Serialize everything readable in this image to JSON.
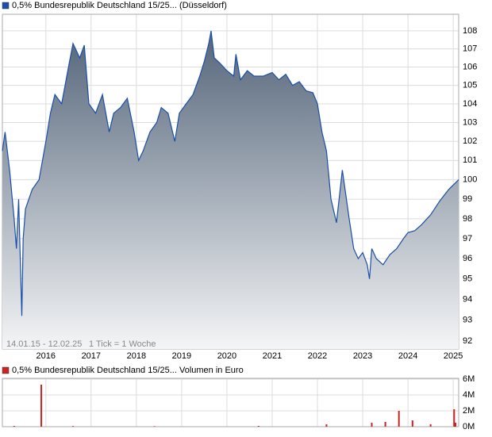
{
  "chart_data": [
    {
      "type": "area",
      "series": [
        {
          "name": "0,5% Bundesrepublik Deutschland 15/25... (Düsseldorf)",
          "color": "#1a4fa8",
          "x": [
            2015.04,
            2015.1,
            2015.2,
            2015.3,
            2015.35,
            2015.4,
            2015.47,
            2015.5,
            2015.55,
            2015.7,
            2015.85,
            2016.0,
            2016.1,
            2016.2,
            2016.35,
            2016.5,
            2016.6,
            2016.75,
            2016.85,
            2016.95,
            2017.1,
            2017.25,
            2017.4,
            2017.5,
            2017.65,
            2017.8,
            2017.95,
            2018.05,
            2018.15,
            2018.3,
            2018.45,
            2018.55,
            2018.7,
            2018.85,
            2018.95,
            2019.1,
            2019.25,
            2019.4,
            2019.5,
            2019.6,
            2019.65,
            2019.72,
            2019.85,
            2020.0,
            2020.15,
            2020.2,
            2020.3,
            2020.45,
            2020.6,
            2020.8,
            2021.0,
            2021.15,
            2021.3,
            2021.45,
            2021.6,
            2021.75,
            2021.9,
            2022.0,
            2022.1,
            2022.2,
            2022.3,
            2022.42,
            2022.55,
            2022.7,
            2022.8,
            2022.9,
            2023.0,
            2023.1,
            2023.15,
            2023.2,
            2023.3,
            2023.45,
            2023.6,
            2023.75,
            2023.9,
            2024.0,
            2024.15,
            2024.3,
            2024.5,
            2024.7,
            2024.9,
            2025.12
          ],
          "values": [
            101.5,
            102.5,
            100.5,
            98,
            96.5,
            99,
            93.2,
            97,
            98.5,
            99.5,
            100,
            102,
            103.5,
            104.5,
            104,
            106,
            107.3,
            106.5,
            107.2,
            104,
            103.5,
            104.5,
            102.5,
            103.5,
            103.8,
            104.3,
            102.5,
            101,
            101.5,
            102.5,
            103,
            103.8,
            103.5,
            102,
            103.5,
            104,
            104.5,
            105.5,
            106.3,
            107.3,
            108,
            106.5,
            106.2,
            105.8,
            105.5,
            106.7,
            105.3,
            105.8,
            105.5,
            105.5,
            105.7,
            105.3,
            105.6,
            105,
            105.2,
            104.7,
            104.6,
            104,
            102.5,
            101.5,
            99,
            97.8,
            100.5,
            98,
            96.5,
            96,
            96.3,
            95.7,
            95,
            96.5,
            96,
            95.7,
            96.2,
            96.5,
            97,
            97.3,
            97.4,
            97.7,
            98.2,
            98.9,
            99.5,
            100
          ]
        }
      ],
      "annotations": [
        "14.01.15 - 12.02.25",
        "1 Tick = 1 Woche"
      ],
      "log_scale": true,
      "grid": true,
      "xlim": [
        2015.04,
        2025.12
      ],
      "xticks": [
        2016,
        2017,
        2018,
        2019,
        2020,
        2021,
        2022,
        2023,
        2024,
        2025
      ],
      "ylim": [
        91.62,
        108.93
      ],
      "yticks": [
        92,
        93,
        94,
        95,
        96,
        97,
        98,
        99,
        100,
        101,
        102,
        103,
        104,
        105,
        106,
        107,
        108
      ]
    },
    {
      "type": "bar",
      "series": [
        {
          "name": "0,5% Bundesrepublik Deutschland 15/25... Volumen in Euro",
          "color": "#cc2222",
          "x": [
            2015.3,
            2015.9,
            2016.6,
            2018.4,
            2020.7,
            2022.2,
            2023.2,
            2023.5,
            2023.8,
            2024.1,
            2024.5,
            2025.02,
            2025.05
          ],
          "values": [
            100000,
            5300000,
            80000,
            60000,
            100000,
            300000,
            500000,
            600000,
            2000000,
            800000,
            300000,
            2200000,
            500000
          ]
        }
      ],
      "grid": true,
      "xlim": [
        2015.04,
        2025.12
      ],
      "xticks": [
        2016,
        2017,
        2018,
        2019,
        2020,
        2021,
        2022,
        2023,
        2024,
        2025
      ],
      "ylim": [
        0,
        6100000
      ],
      "yticks": [
        {
          "value": 0,
          "label": "0M"
        },
        {
          "value": 2000000,
          "label": "2M"
        },
        {
          "value": 4000000,
          "label": "4M"
        },
        {
          "value": 6000000,
          "label": "6M"
        }
      ]
    }
  ]
}
